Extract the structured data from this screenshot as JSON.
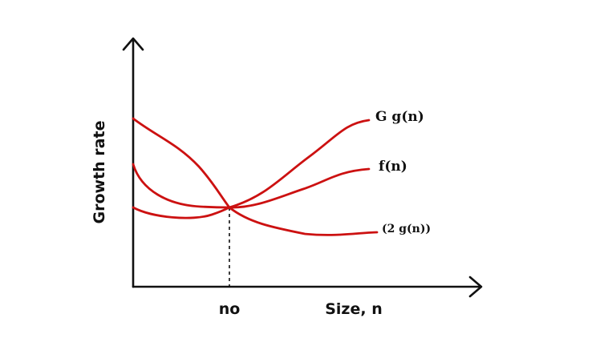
{
  "axes": {
    "y_label": "Growth rate",
    "x_label": "Size, n",
    "threshold_label": "no"
  },
  "curves": [
    {
      "name": "upper-bound-curve",
      "label": "G g(n)"
    },
    {
      "name": "function-curve",
      "label": "f(n)"
    },
    {
      "name": "lower-bound-curve",
      "label": "(2 g(n))"
    }
  ],
  "colors": {
    "curve": "#cc1111",
    "axis": "#111111",
    "background": "#ffffff"
  }
}
